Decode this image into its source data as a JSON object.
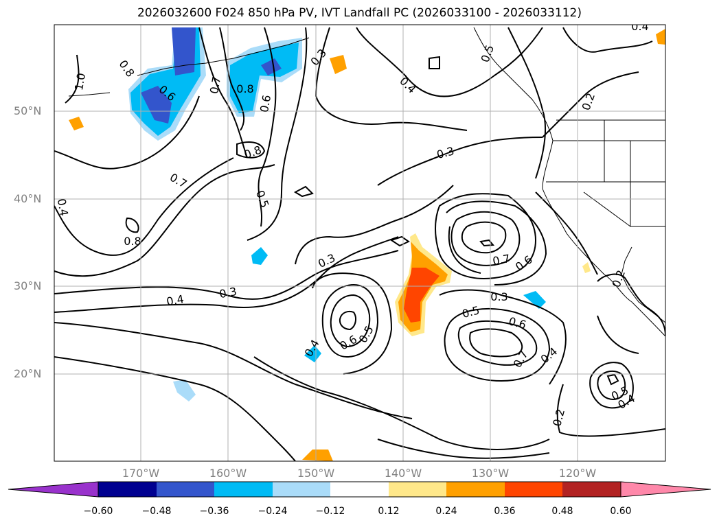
{
  "title": "2026032600 F024 850 hPa PV, IVT Landfall PC (2026033100 - 2026033112)",
  "lat_labels": [
    "50°N",
    "40°N",
    "30°N",
    "20°N"
  ],
  "lon_labels": [
    "170°W",
    "160°W",
    "150°W",
    "140°W",
    "130°W",
    "120°W"
  ],
  "colorbar": {
    "ticks": [
      "−0.60",
      "−0.48",
      "−0.36",
      "−0.24",
      "−0.12",
      "0.12",
      "0.24",
      "0.36",
      "0.48",
      "0.60"
    ],
    "colors": {
      "below": "#9932cc",
      "bins": [
        "#000090",
        "#3355cc",
        "#00bbf5",
        "#aadcf9",
        "#ffffff",
        "#ffe88a",
        "#ffa000",
        "#ff4500",
        "#b22222"
      ],
      "above": "#ff88aa"
    }
  },
  "contour_labels": [
    "1.0",
    "0.8",
    "0.6",
    "0.7",
    "0.8",
    "0.6",
    "0.3",
    "0.5",
    "0.4",
    "0.2",
    "0.4",
    "0.8",
    "0.7",
    "0.5",
    "0.3",
    "0.4",
    "0.8",
    "0.4",
    "0.3",
    "0.3",
    "0.4",
    "0.6",
    "0.5",
    "0.5",
    "0.7",
    "0.6",
    "0.3",
    "0.6",
    "0.7",
    "0.4",
    "0.2",
    "0.2",
    "0.5",
    "0.4"
  ],
  "colors": {
    "contour": "#000000",
    "grid": "#b0b0b0",
    "axis_label": "#7f7f7f",
    "positive_light": "#ffe88a",
    "positive_mid": "#ffa000",
    "positive_strong": "#ff4500",
    "negative_light": "#aadcf9",
    "negative_mid": "#00bbf5",
    "negative_strong": "#3355cc"
  }
}
